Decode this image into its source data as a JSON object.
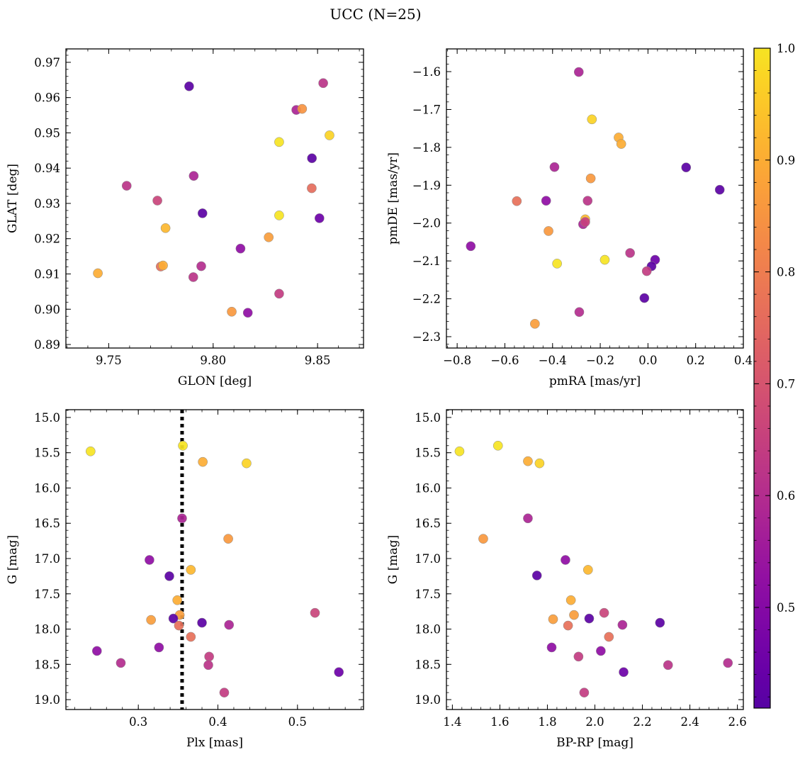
{
  "figure": {
    "title": "UCC (N=25)"
  },
  "colorbar": {
    "colormap": "plasma",
    "range": [
      0.41,
      1.0
    ],
    "ticks": [
      0.5,
      0.6,
      0.7,
      0.8,
      0.9,
      1.0
    ],
    "tick_labels": [
      "0.5",
      "0.6",
      "0.7",
      "0.8",
      "0.9",
      "1.0"
    ]
  },
  "chart_data": [
    {
      "type": "scatter",
      "id": "glon-glat",
      "xlabel": "GLON [deg]",
      "ylabel": "GLAT [deg]",
      "xlim": [
        9.7295,
        9.872
      ],
      "ylim": [
        0.889,
        0.9738
      ],
      "xticks": [
        9.75,
        9.8,
        9.85
      ],
      "xtick_labels": [
        "9.75",
        "9.80",
        "9.85"
      ],
      "yticks": [
        0.89,
        0.9,
        0.91,
        0.92,
        0.93,
        0.94,
        0.95,
        0.96,
        0.97
      ],
      "ytick_labels": [
        "0.89",
        "0.90",
        "0.91",
        "0.92",
        "0.93",
        "0.94",
        "0.95",
        "0.96",
        "0.97"
      ],
      "x": [
        9.7885,
        9.8527,
        9.8398,
        9.8426,
        9.8557,
        9.8316,
        9.8473,
        9.7586,
        9.7907,
        9.7733,
        9.8472,
        9.7949,
        9.8316,
        9.8509,
        9.7772,
        9.8266,
        9.8131,
        9.7448,
        9.7749,
        9.776,
        9.7943,
        9.7905,
        9.8316,
        9.8089,
        9.8166
      ],
      "y": [
        0.9632,
        0.9641,
        0.9565,
        0.9568,
        0.9493,
        0.9474,
        0.9428,
        0.935,
        0.9378,
        0.9308,
        0.9343,
        0.9272,
        0.9266,
        0.9258,
        0.923,
        0.9204,
        0.9172,
        0.9102,
        0.9121,
        0.9124,
        0.9122,
        0.9091,
        0.9044,
        0.8993,
        0.899
      ],
      "c": [
        0.42,
        0.62,
        0.58,
        0.85,
        0.97,
        1.0,
        0.42,
        0.62,
        0.58,
        0.66,
        0.76,
        0.42,
        1.0,
        0.45,
        0.92,
        0.87,
        0.52,
        0.9,
        0.77,
        0.9,
        0.6,
        0.62,
        0.64,
        0.86,
        0.52
      ]
    },
    {
      "type": "scatter",
      "id": "pmra-pmde",
      "xlabel": "pmRA [mas/yr]",
      "ylabel": "pmDE [mas/yr]",
      "xlim": [
        -0.845,
        0.4
      ],
      "ylim": [
        -2.33,
        -1.54
      ],
      "xticks": [
        -0.8,
        -0.6,
        -0.4,
        -0.2,
        0.0,
        0.2,
        0.4
      ],
      "xtick_labels": [
        "−0.8",
        "−0.6",
        "−0.4",
        "−0.2",
        "0.0",
        "0.2",
        "0.4"
      ],
      "yticks": [
        -2.3,
        -2.2,
        -2.1,
        -2.0,
        -1.9,
        -1.8,
        -1.7,
        -1.6
      ],
      "ytick_labels": [
        "−2.3",
        "−2.2",
        "−2.1",
        "−2.0",
        "−1.9",
        "−1.8",
        "−1.7",
        "−1.6"
      ],
      "x": [
        -0.29,
        -0.235,
        -0.123,
        -0.112,
        -0.392,
        0.16,
        -0.24,
        -0.55,
        -0.427,
        -0.253,
        0.301,
        -0.263,
        -0.272,
        -0.417,
        -0.381,
        -0.181,
        -0.075,
        0.03,
        0.015,
        -0.005,
        -0.743,
        -0.015,
        -0.288,
        -0.474,
        -0.263
      ],
      "y": [
        -1.601,
        -1.726,
        -1.774,
        -1.791,
        -1.852,
        -1.853,
        -1.882,
        -1.942,
        -1.941,
        -1.941,
        -1.912,
        -1.99,
        -2.003,
        -2.021,
        -2.107,
        -2.097,
        -2.079,
        -2.097,
        -2.114,
        -2.127,
        -2.061,
        -2.198,
        -2.235,
        -2.266,
        -1.997
      ],
      "c": [
        0.58,
        0.97,
        0.9,
        0.9,
        0.58,
        0.42,
        0.86,
        0.77,
        0.52,
        0.62,
        0.42,
        0.92,
        0.58,
        0.86,
        1.0,
        1.0,
        0.62,
        0.45,
        0.42,
        0.64,
        0.52,
        0.42,
        0.6,
        0.87,
        0.65
      ]
    },
    {
      "type": "scatter",
      "id": "plx-g",
      "xlabel": "Plx [mas]",
      "ylabel": "G [mag]",
      "xlim": [
        0.209,
        0.583
      ],
      "ylim": [
        19.14,
        14.89
      ],
      "y_inverted": true,
      "xticks": [
        0.3,
        0.4,
        0.5
      ],
      "xtick_labels": [
        "0.3",
        "0.4",
        "0.5"
      ],
      "yticks": [
        15.0,
        15.5,
        16.0,
        16.5,
        17.0,
        17.5,
        18.0,
        18.5,
        19.0
      ],
      "ytick_labels": [
        "15.0",
        "15.5",
        "16.0",
        "16.5",
        "17.0",
        "17.5",
        "18.0",
        "18.5",
        "19.0"
      ],
      "vline": 0.355,
      "x": [
        0.24,
        0.356,
        0.381,
        0.436,
        0.355,
        0.413,
        0.314,
        0.339,
        0.366,
        0.349,
        0.522,
        0.352,
        0.316,
        0.344,
        0.38,
        0.414,
        0.351,
        0.366,
        0.248,
        0.326,
        0.278,
        0.389,
        0.388,
        0.408,
        0.552
      ],
      "y": [
        15.48,
        15.4,
        15.63,
        15.65,
        16.43,
        16.72,
        17.02,
        17.25,
        17.16,
        17.59,
        17.77,
        17.8,
        17.87,
        17.85,
        17.91,
        17.94,
        17.95,
        18.11,
        18.31,
        18.26,
        18.48,
        18.39,
        18.51,
        18.9,
        18.61
      ],
      "c": [
        1.0,
        1.0,
        0.9,
        0.97,
        0.58,
        0.86,
        0.52,
        0.42,
        0.92,
        0.9,
        0.66,
        0.87,
        0.87,
        0.42,
        0.42,
        0.58,
        0.77,
        0.77,
        0.52,
        0.52,
        0.6,
        0.64,
        0.62,
        0.64,
        0.45
      ]
    },
    {
      "type": "scatter",
      "id": "bprp-g",
      "xlabel": "BP-RP [mag]",
      "ylabel": "G [mag]",
      "xlim": [
        1.375,
        2.625
      ],
      "ylim": [
        19.14,
        14.89
      ],
      "y_inverted": true,
      "xticks": [
        1.4,
        1.6,
        1.8,
        2.0,
        2.2,
        2.4,
        2.6
      ],
      "xtick_labels": [
        "1.4",
        "1.6",
        "1.8",
        "2.0",
        "2.2",
        "2.4",
        "2.6"
      ],
      "yticks": [
        15.0,
        15.5,
        16.0,
        16.5,
        17.0,
        17.5,
        18.0,
        18.5,
        19.0
      ],
      "ytick_labels": [
        "15.0",
        "15.5",
        "16.0",
        "16.5",
        "17.0",
        "17.5",
        "18.0",
        "18.5",
        "19.0"
      ],
      "x": [
        1.43,
        1.592,
        1.718,
        1.767,
        1.718,
        1.53,
        1.876,
        1.756,
        1.971,
        1.899,
        2.039,
        1.912,
        1.824,
        1.976,
        2.274,
        2.116,
        1.887,
        2.059,
        2.025,
        1.818,
        2.56,
        1.931,
        2.308,
        1.955,
        2.121
      ],
      "y": [
        15.48,
        15.4,
        15.62,
        15.65,
        16.43,
        16.72,
        17.02,
        17.24,
        17.16,
        17.59,
        17.77,
        17.8,
        17.86,
        17.85,
        17.91,
        17.94,
        17.95,
        18.11,
        18.31,
        18.26,
        18.48,
        18.39,
        18.51,
        18.9,
        18.61
      ],
      "c": [
        1.0,
        1.0,
        0.9,
        0.97,
        0.58,
        0.86,
        0.52,
        0.42,
        0.92,
        0.9,
        0.66,
        0.87,
        0.87,
        0.42,
        0.42,
        0.58,
        0.77,
        0.77,
        0.52,
        0.52,
        0.6,
        0.64,
        0.62,
        0.64,
        0.45
      ]
    }
  ]
}
